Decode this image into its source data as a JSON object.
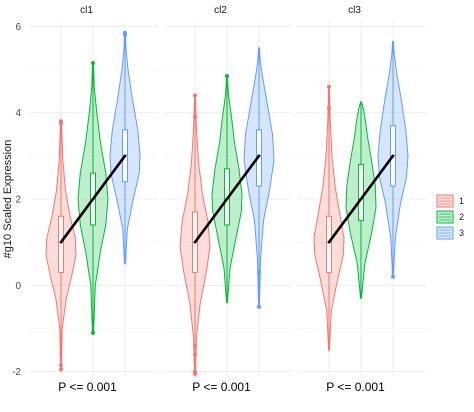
{
  "chart_data": {
    "type": "violin",
    "ylabel": "#g10 Scaled Expression",
    "ylim": [
      -2.1,
      6.1
    ],
    "yticks": [
      -2,
      0,
      2,
      4,
      6
    ],
    "grid": true,
    "legend": {
      "position": "right",
      "entries": [
        {
          "label": "1",
          "color": "#F8766D"
        },
        {
          "label": "2",
          "color": "#00BA38"
        },
        {
          "label": "3",
          "color": "#619CFF"
        }
      ]
    },
    "facets": [
      {
        "title": "cl1",
        "pvalue": "P <= 0.001",
        "trend": [
          1.0,
          2.0,
          3.0
        ],
        "groups": [
          {
            "name": "1",
            "min": -1.9,
            "max": 3.8,
            "q1": 0.3,
            "median": 1.0,
            "q3": 1.6,
            "outliers": [
              3.8,
              3.75,
              -1.95,
              -1.85
            ],
            "density": [
              [
                -1.9,
                0.03
              ],
              [
                -1.0,
                0.08
              ],
              [
                -0.3,
                0.35
              ],
              [
                0.2,
                0.7
              ],
              [
                0.7,
                1.0
              ],
              [
                1.1,
                0.95
              ],
              [
                1.6,
                0.6
              ],
              [
                2.2,
                0.3
              ],
              [
                2.9,
                0.12
              ],
              [
                3.8,
                0.03
              ]
            ]
          },
          {
            "name": "2",
            "min": -1.1,
            "max": 5.15,
            "q1": 1.4,
            "median": 2.0,
            "q3": 2.6,
            "outliers": [
              5.15,
              -1.1
            ],
            "density": [
              [
                -1.1,
                0.03
              ],
              [
                0.0,
                0.15
              ],
              [
                0.8,
                0.5
              ],
              [
                1.4,
                0.85
              ],
              [
                2.0,
                1.0
              ],
              [
                2.6,
                0.85
              ],
              [
                3.3,
                0.5
              ],
              [
                4.0,
                0.25
              ],
              [
                4.6,
                0.08
              ],
              [
                5.15,
                0.03
              ]
            ]
          },
          {
            "name": "3",
            "min": 0.5,
            "max": 5.85,
            "q1": 2.4,
            "median": 3.0,
            "q3": 3.6,
            "outliers": [
              5.85,
              5.8
            ],
            "density": [
              [
                0.5,
                0.03
              ],
              [
                1.3,
                0.15
              ],
              [
                2.0,
                0.55
              ],
              [
                2.6,
                0.95
              ],
              [
                3.0,
                1.0
              ],
              [
                3.6,
                0.85
              ],
              [
                4.3,
                0.5
              ],
              [
                5.0,
                0.2
              ],
              [
                5.5,
                0.06
              ],
              [
                5.85,
                0.03
              ]
            ]
          }
        ]
      },
      {
        "title": "cl2",
        "pvalue": "P <= 0.001",
        "trend": [
          1.0,
          2.0,
          3.0
        ],
        "groups": [
          {
            "name": "1",
            "min": -2.1,
            "max": 4.4,
            "q1": 0.3,
            "median": 1.0,
            "q3": 1.7,
            "outliers": [
              4.4,
              3.9,
              -2.0,
              -2.05,
              -1.6,
              -1.4
            ],
            "density": [
              [
                -2.1,
                0.03
              ],
              [
                -1.2,
                0.1
              ],
              [
                -0.4,
                0.35
              ],
              [
                0.3,
                0.75
              ],
              [
                0.9,
                1.0
              ],
              [
                1.5,
                0.85
              ],
              [
                2.1,
                0.5
              ],
              [
                2.8,
                0.25
              ],
              [
                3.6,
                0.1
              ],
              [
                4.4,
                0.03
              ]
            ]
          },
          {
            "name": "2",
            "min": -0.4,
            "max": 4.85,
            "q1": 1.4,
            "median": 2.0,
            "q3": 2.7,
            "outliers": [
              4.85
            ],
            "density": [
              [
                -0.4,
                0.03
              ],
              [
                0.4,
                0.2
              ],
              [
                1.1,
                0.6
              ],
              [
                1.7,
                0.95
              ],
              [
                2.1,
                1.0
              ],
              [
                2.7,
                0.8
              ],
              [
                3.3,
                0.5
              ],
              [
                3.9,
                0.3
              ],
              [
                4.4,
                0.1
              ],
              [
                4.85,
                0.03
              ]
            ]
          },
          {
            "name": "3",
            "min": -0.5,
            "max": 5.5,
            "q1": 2.3,
            "median": 3.0,
            "q3": 3.6,
            "outliers": [
              -0.5,
              0.3
            ],
            "density": [
              [
                -0.5,
                0.03
              ],
              [
                0.6,
                0.1
              ],
              [
                1.5,
                0.3
              ],
              [
                2.2,
                0.7
              ],
              [
                2.9,
                1.0
              ],
              [
                3.5,
                0.9
              ],
              [
                4.2,
                0.55
              ],
              [
                4.8,
                0.25
              ],
              [
                5.2,
                0.08
              ],
              [
                5.5,
                0.03
              ]
            ]
          }
        ]
      },
      {
        "title": "cl3",
        "pvalue": "P <= 0.001",
        "trend": [
          1.0,
          2.0,
          3.0
        ],
        "groups": [
          {
            "name": "1",
            "min": -1.5,
            "max": 4.6,
            "q1": 0.3,
            "median": 1.0,
            "q3": 1.6,
            "outliers": [
              4.6,
              4.1
            ],
            "density": [
              [
                -1.5,
                0.03
              ],
              [
                -0.6,
                0.15
              ],
              [
                0.1,
                0.55
              ],
              [
                0.7,
                0.95
              ],
              [
                1.1,
                1.0
              ],
              [
                1.6,
                0.75
              ],
              [
                2.3,
                0.4
              ],
              [
                3.0,
                0.2
              ],
              [
                3.8,
                0.08
              ],
              [
                4.6,
                0.03
              ]
            ]
          },
          {
            "name": "2",
            "min": -0.3,
            "max": 4.25,
            "q1": 1.5,
            "median": 2.0,
            "q3": 2.8,
            "outliers": [],
            "density": [
              [
                -0.3,
                0.03
              ],
              [
                0.5,
                0.25
              ],
              [
                1.2,
                0.7
              ],
              [
                1.8,
                1.0
              ],
              [
                2.3,
                0.95
              ],
              [
                2.9,
                0.7
              ],
              [
                3.4,
                0.45
              ],
              [
                3.8,
                0.3
              ],
              [
                4.1,
                0.15
              ],
              [
                4.25,
                0.03
              ]
            ]
          },
          {
            "name": "3",
            "min": 0.2,
            "max": 5.65,
            "q1": 2.3,
            "median": 3.0,
            "q3": 3.7,
            "outliers": [
              0.2
            ],
            "density": [
              [
                0.2,
                0.03
              ],
              [
                1.1,
                0.15
              ],
              [
                1.9,
                0.5
              ],
              [
                2.5,
                0.9
              ],
              [
                3.0,
                1.0
              ],
              [
                3.6,
                0.85
              ],
              [
                4.3,
                0.55
              ],
              [
                4.9,
                0.25
              ],
              [
                5.35,
                0.08
              ],
              [
                5.65,
                0.03
              ]
            ]
          }
        ]
      }
    ]
  }
}
